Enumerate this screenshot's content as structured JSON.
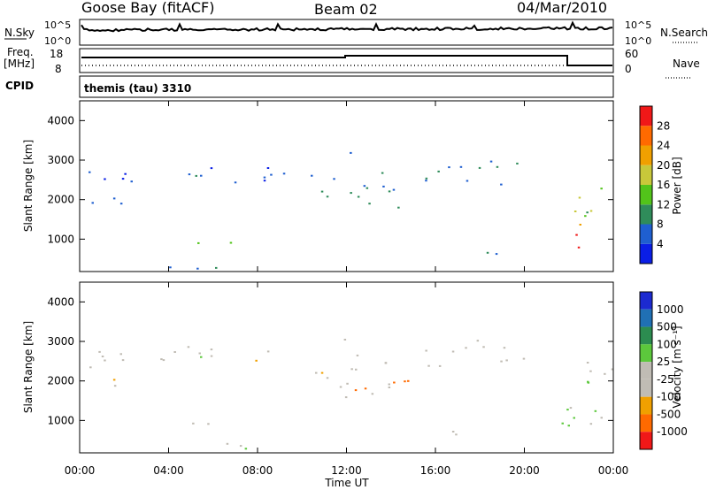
{
  "header": {
    "radar": "Goose Bay (fitACF)",
    "beam": "Beam 02",
    "date": "04/Mar/2010"
  },
  "status": {
    "nsky_label": "N.Sky",
    "nsearch_label": "N.Search",
    "noise_ticks": [
      "10^5",
      "10^0"
    ],
    "freq_label_1": "Freq.",
    "freq_label_2": "[MHz]",
    "freq_ticks": [
      "18",
      "8"
    ],
    "nave_label": "Nave",
    "nave_ticks": [
      "60",
      "0"
    ],
    "cpid_label": "CPID",
    "cpid_text": "themis (tau) 3310"
  },
  "axes": {
    "y_label": "Slant Range [km]",
    "y_ticks": [
      "1000",
      "2000",
      "3000",
      "4000"
    ],
    "x_ticks": [
      "00:00",
      "04:00",
      "08:00",
      "12:00",
      "16:00",
      "20:00",
      "00:00"
    ],
    "x_label": "Time UT"
  },
  "colorbars": {
    "power": {
      "label": "Power [dB]",
      "ticks": [
        "4",
        "8",
        "12",
        "16",
        "20",
        "24",
        "28"
      ],
      "colors": [
        "#0a1ee6",
        "#1f5fd0",
        "#2f8c5a",
        "#52c41a",
        "#c8c83a",
        "#f0a000",
        "#ff6a00",
        "#f01818"
      ]
    },
    "velocity": {
      "label": "Velocity [m s⁻¹]",
      "ticks": [
        "1000",
        "500",
        "100",
        "25",
        "-25",
        "-100",
        "-500",
        "-1000"
      ],
      "colors": [
        "#1c2ad0",
        "#2070b4",
        "#2c8c50",
        "#5cc83c",
        "#c0bcb4",
        "#c0bcb4",
        "#f0a000",
        "#ff6a00",
        "#f01818"
      ]
    }
  },
  "chart_data": {
    "type": "heatmap",
    "x_range_hours": [
      0,
      24
    ],
    "y_range_km": [
      180,
      4500
    ],
    "power_range_db": [
      0,
      32
    ],
    "velocity_range_ms": [
      -1000,
      1000
    ],
    "echo_bands": [
      {
        "t": [
          0.0,
          2.3
        ],
        "r": [
          1700,
          2850
        ],
        "power": 5
      },
      {
        "t": [
          0.2,
          0.8
        ],
        "r": [
          3200,
          3400
        ],
        "power": 4
      },
      {
        "t": [
          3.6,
          9.3
        ],
        "r": [
          2400,
          3000
        ],
        "power": 5
      },
      {
        "t": [
          4.3,
          6.9
        ],
        "r": [
          800,
          1100
        ],
        "power": 16
      },
      {
        "t": [
          4.0,
          9.0
        ],
        "r": [
          250,
          450
        ],
        "power": 6
      },
      {
        "t": [
          10.0,
          14.5
        ],
        "r": [
          1600,
          2700
        ],
        "power": 9
      },
      {
        "t": [
          11.5,
          12.3
        ],
        "r": [
          3000,
          3500
        ],
        "power": 6
      },
      {
        "t": [
          15.5,
          20.5
        ],
        "r": [
          2300,
          3100
        ],
        "power": 7
      },
      {
        "t": [
          15.5,
          19.5
        ],
        "r": [
          600,
          750
        ],
        "power": 6
      },
      {
        "t": [
          22.0,
          24.0
        ],
        "r": [
          1600,
          2600
        ],
        "power": 14
      },
      {
        "t": [
          21.9,
          23.5
        ],
        "r": [
          750,
          1400
        ],
        "power": 26
      }
    ],
    "velocity_bands": [
      {
        "t": [
          12.0,
          15.0
        ],
        "r": [
          1700,
          2100
        ],
        "velocity": -100
      },
      {
        "t": [
          21.5,
          23.5
        ],
        "r": [
          800,
          1400
        ],
        "velocity": 100
      },
      {
        "t": [
          0.0,
          24.0
        ],
        "r": [
          180,
          4000
        ],
        "velocity": 0
      }
    ]
  }
}
